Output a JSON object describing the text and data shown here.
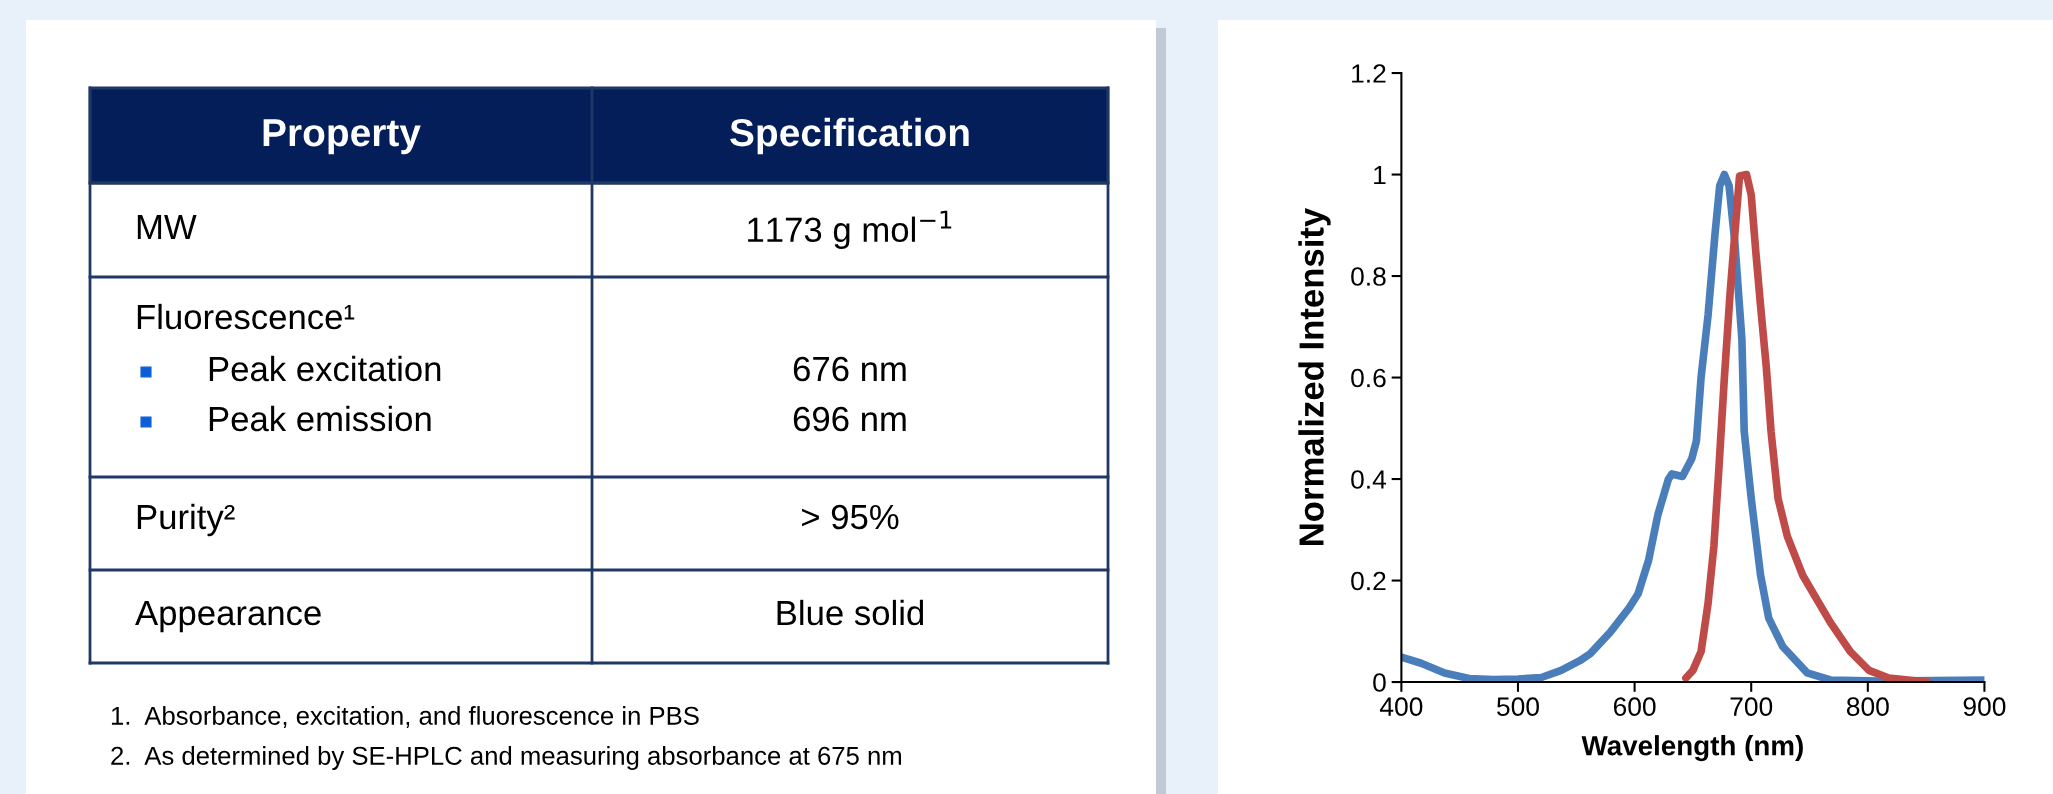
{
  "chart_data": [
    {
      "type": "other",
      "annotations": [
        "Property",
        "Specification",
        "MW",
        "1173 g mol$^{−1}$",
        "Fluorescence¹",
        "Peak excitation",
        "Peak emission",
        "676 nm",
        "696 nm",
        "Purity²",
        "> 95%",
        "Appearance",
        "Blue solid",
        "1.  Absorbance, excitation, and fluorescence in PBS",
        "2.  As determined by SE-HPLC and measuring absorbance at 675 nm"
      ]
    },
    {
      "type": "line",
      "xlabel": "Wavelength (nm)",
      "ylabel": "Normalized Intensity",
      "xlim": [
        400,
        900
      ],
      "xticks": [
        400,
        500,
        600,
        700,
        800,
        900
      ],
      "ylim": [
        0,
        1.2
      ],
      "yticks": [
        0,
        0.2,
        0.4,
        0.6,
        0.8,
        1,
        1.2
      ],
      "grid": false,
      "marker": "none",
      "line_style": "solid",
      "series": [
        {
          "color": "#4a7ebb",
          "x": [
            400,
            417,
            437,
            458,
            479,
            500,
            520,
            537,
            553,
            562,
            579,
            595,
            603,
            612,
            620,
            629,
            632,
            641,
            649,
            653,
            657,
            663,
            669,
            673,
            677,
            681,
            686,
            692,
            694,
            700,
            708,
            715,
            727,
            748,
            768,
            810,
            900
          ],
          "values": [
            0.049,
            0.037,
            0.018,
            0.007,
            0.005,
            0.006,
            0.009,
            0.023,
            0.042,
            0.056,
            0.098,
            0.145,
            0.174,
            0.24,
            0.33,
            0.4,
            0.41,
            0.405,
            0.44,
            0.475,
            0.6,
            0.723,
            0.884,
            0.978,
            1.0,
            0.978,
            0.865,
            0.676,
            0.494,
            0.362,
            0.211,
            0.126,
            0.07,
            0.018,
            0.004,
            0.002,
            0.004
          ]
        },
        {
          "color": "#be4b48",
          "x": [
            644,
            650,
            657,
            663,
            668,
            672,
            677,
            682,
            686,
            690,
            696,
            700,
            704,
            708,
            713,
            717,
            723,
            731,
            744,
            756,
            768,
            785,
            801,
            818,
            851
          ],
          "values": [
            0.008,
            0.023,
            0.06,
            0.155,
            0.268,
            0.41,
            0.6,
            0.77,
            0.884,
            0.997,
            1.0,
            0.96,
            0.846,
            0.742,
            0.619,
            0.494,
            0.362,
            0.287,
            0.211,
            0.164,
            0.117,
            0.06,
            0.023,
            0.008,
            0.0
          ]
        }
      ]
    }
  ]
}
